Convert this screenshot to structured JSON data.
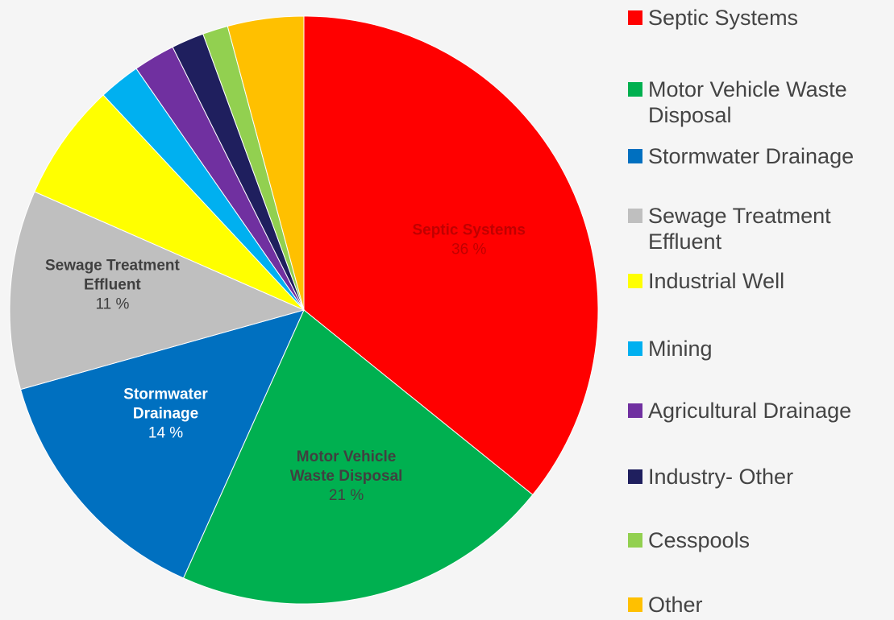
{
  "chart_data": {
    "type": "pie",
    "slices": [
      {
        "label": "Septic Systems",
        "value": 36,
        "color": "#ff0000",
        "data_label_name_lines": [
          "Septic Systems"
        ],
        "data_label_value": "36 %"
      },
      {
        "label": "Motor Vehicle Waste Disposal",
        "value": 21,
        "color": "#00b050",
        "data_label_name_lines": [
          "Motor Vehicle",
          "Waste Disposal"
        ],
        "data_label_value": "21 %"
      },
      {
        "label": "Stormwater Drainage",
        "value": 14,
        "color": "#0070c0",
        "data_label_name_lines": [
          "Stormwater",
          "Drainage"
        ],
        "data_label_value": "14 %"
      },
      {
        "label": "Sewage Treatment Effluent",
        "value": 11,
        "color": "#bfbfbf",
        "data_label_name_lines": [
          "Sewage Treatment",
          "Effluent"
        ],
        "data_label_value": "11 %"
      },
      {
        "label": "Industrial Well",
        "value": 6.5,
        "color": "#ffff00"
      },
      {
        "label": "Mining",
        "value": 2.3,
        "color": "#00b0f0"
      },
      {
        "label": "Agricultural Drainage",
        "value": 2.3,
        "color": "#7030a0"
      },
      {
        "label": "Industry- Other",
        "value": 1.8,
        "color": "#1f1f5e"
      },
      {
        "label": "Cesspools",
        "value": 1.4,
        "color": "#92d050"
      },
      {
        "label": "Other",
        "value": 4.2,
        "color": "#ffc000"
      }
    ],
    "legend_position": "right",
    "label_colors": {
      "Septic Systems": "#c00000",
      "Motor Vehicle Waste Disposal": "#404040",
      "Stormwater Drainage": "#ffffff",
      "Sewage Treatment Effluent": "#404040"
    }
  }
}
